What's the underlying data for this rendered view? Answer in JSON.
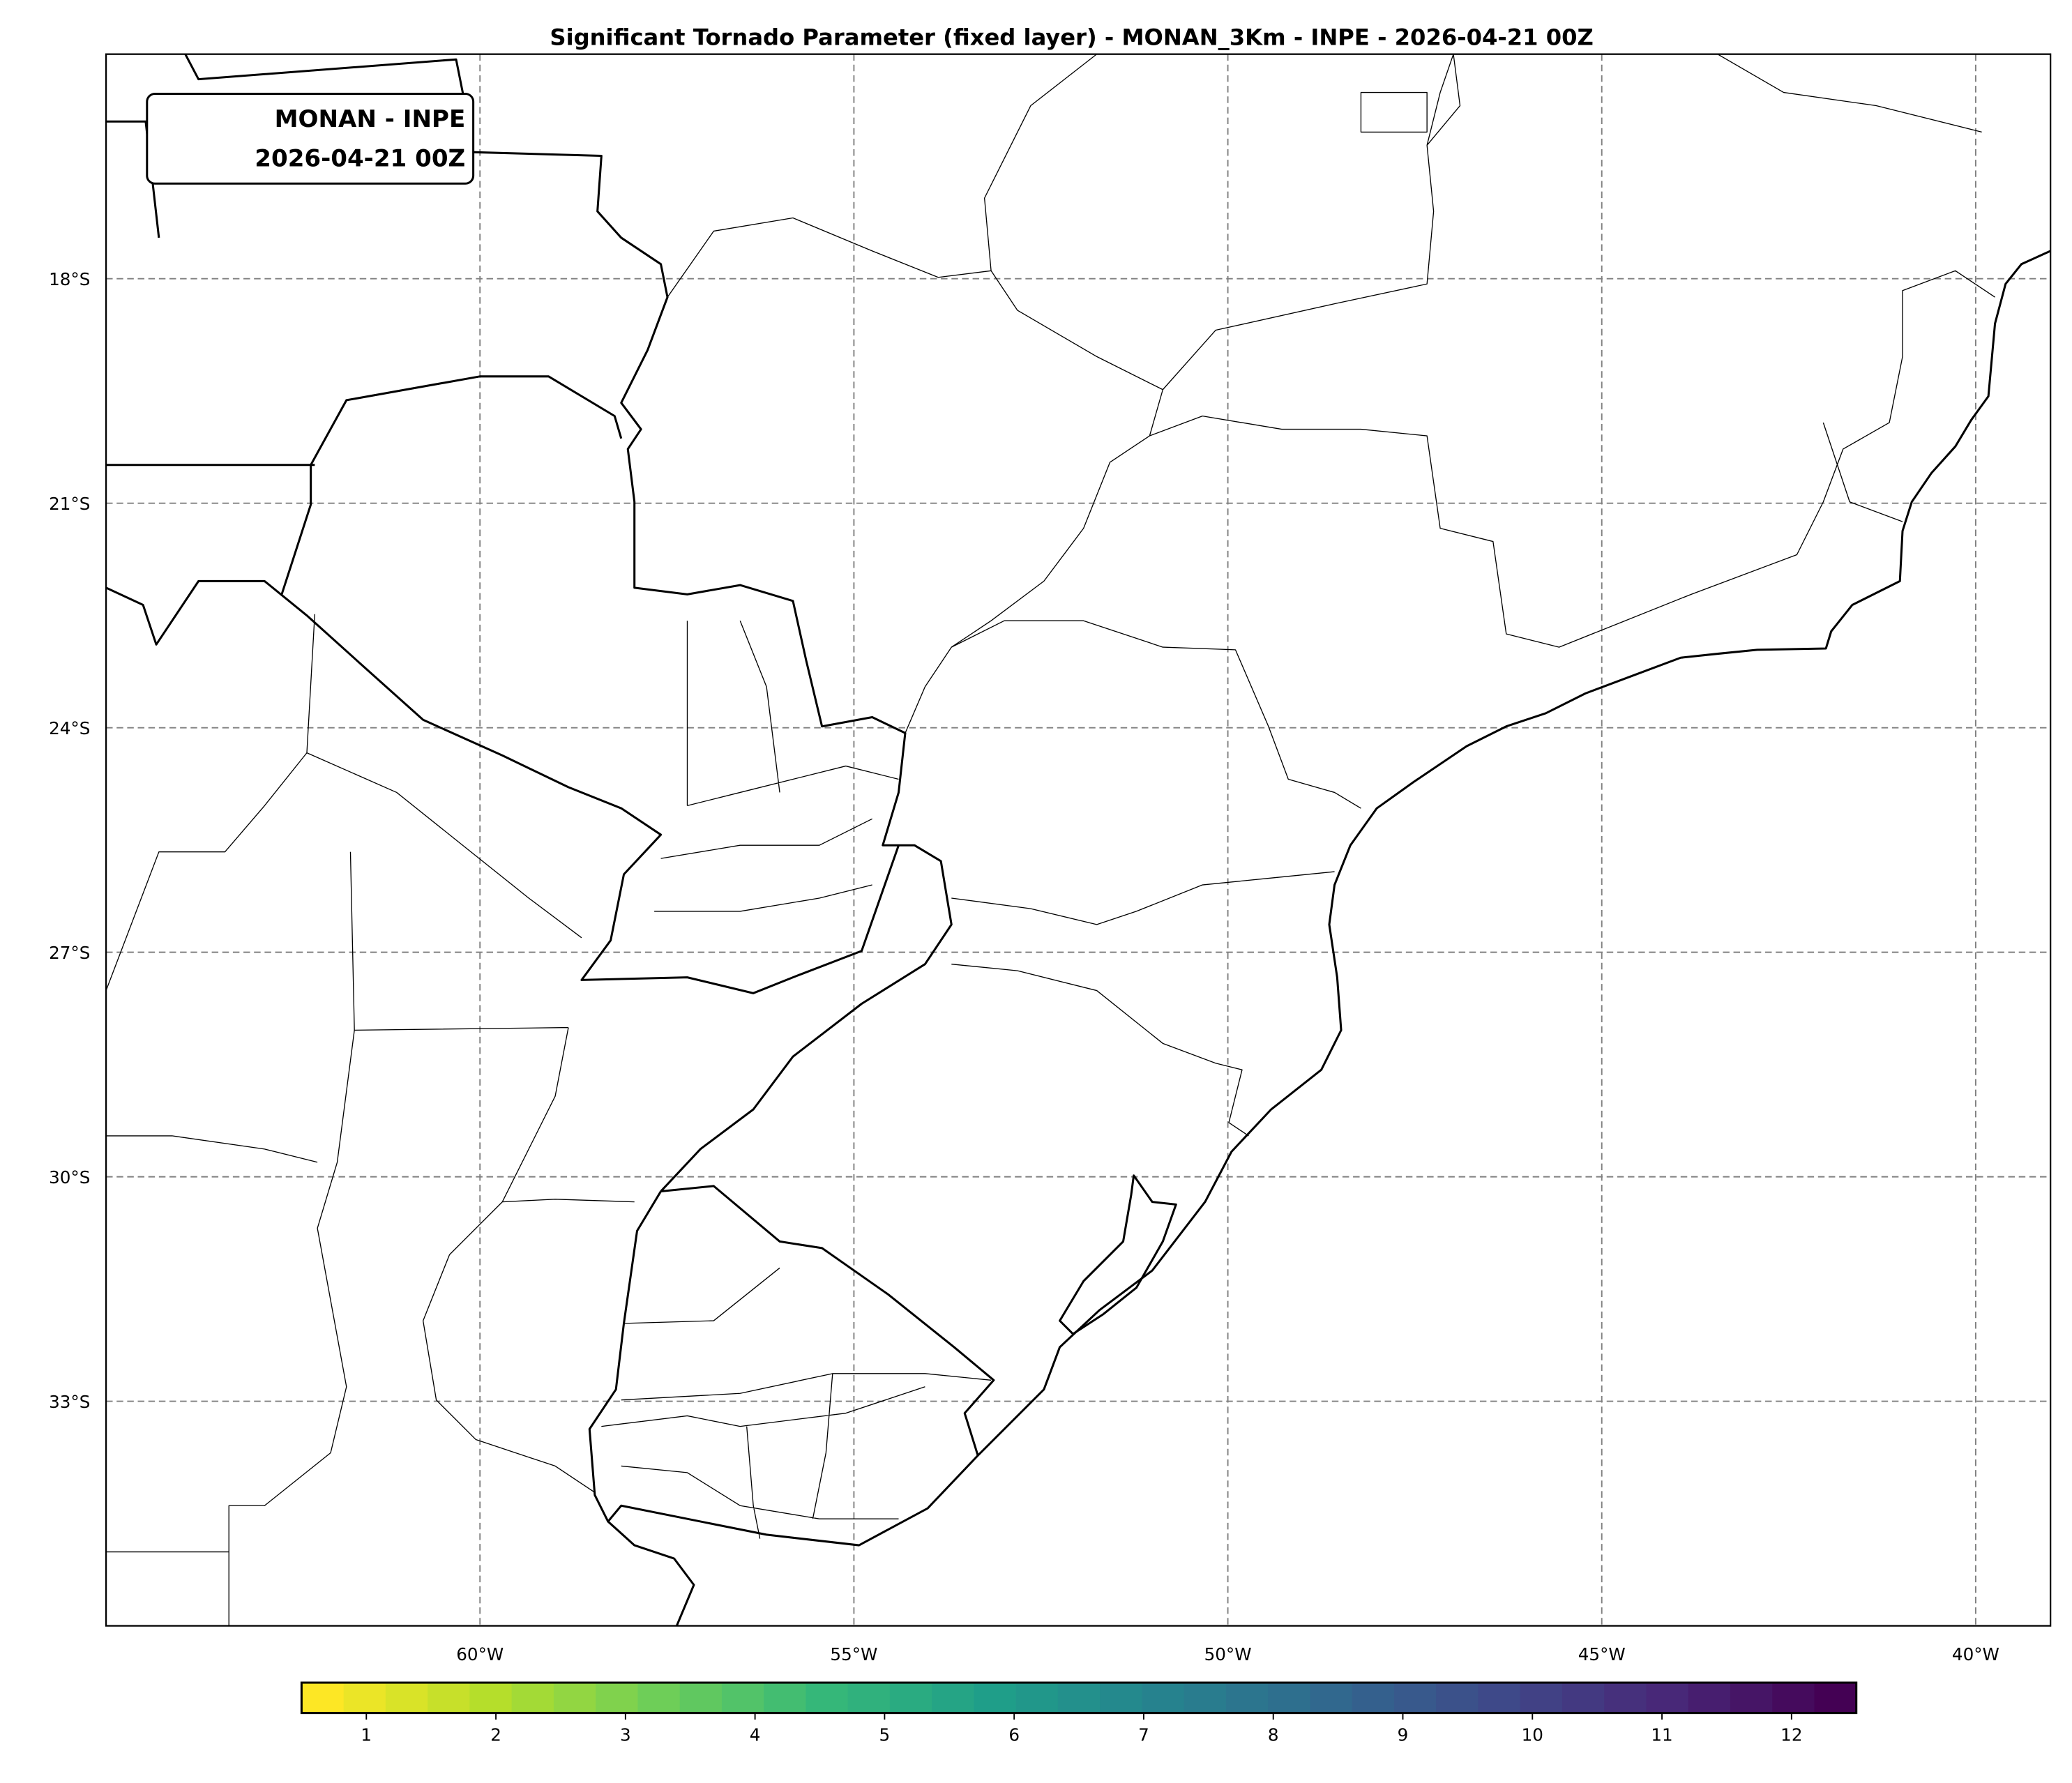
{
  "title": "Significant Tornado Parameter (fixed layer) - MONAN_3Km - INPE - 2026-04-21 00Z",
  "annotation": {
    "line1": "MONAN - INPE",
    "line2": "2026-04-21 00Z"
  },
  "map": {
    "extent_lon": [
      -65,
      -39
    ],
    "extent_lat": [
      -36,
      -15
    ],
    "gridlines": true,
    "lon_ticks": [
      {
        "value": -60,
        "label": "60°W"
      },
      {
        "value": -55,
        "label": "55°W"
      },
      {
        "value": -50,
        "label": "50°W"
      },
      {
        "value": -45,
        "label": "45°W"
      },
      {
        "value": -40,
        "label": "40°W"
      }
    ],
    "lat_ticks": [
      {
        "value": -18,
        "label": "18°S"
      },
      {
        "value": -21,
        "label": "21°S"
      },
      {
        "value": -24,
        "label": "24°S"
      },
      {
        "value": -27,
        "label": "27°S"
      },
      {
        "value": -30,
        "label": "30°S"
      },
      {
        "value": -33,
        "label": "33°S"
      }
    ]
  },
  "colorbar": {
    "colormap": "viridis_r",
    "range": [
      0.5,
      12.5
    ],
    "ticks": [
      "1",
      "2",
      "3",
      "4",
      "5",
      "6",
      "7",
      "8",
      "9",
      "10",
      "11",
      "12"
    ],
    "colors": [
      "#fde725",
      "#b5de2b",
      "#6ece58",
      "#35b779",
      "#1f9e89",
      "#26828e",
      "#31688e",
      "#3e4989",
      "#482878",
      "#440154"
    ]
  }
}
